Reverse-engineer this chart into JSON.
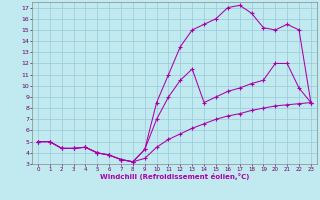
{
  "xlabel": "Windchill (Refroidissement éolien,°C)",
  "bg_color": "#c0eaf0",
  "grid_color": "#98c8d8",
  "line_color": "#aa00aa",
  "xlim": [
    -0.5,
    23.5
  ],
  "ylim": [
    3,
    17.5
  ],
  "yticks": [
    3,
    4,
    5,
    6,
    7,
    8,
    9,
    10,
    11,
    12,
    13,
    14,
    15,
    16,
    17
  ],
  "xticks": [
    0,
    1,
    2,
    3,
    4,
    5,
    6,
    7,
    8,
    9,
    10,
    11,
    12,
    13,
    14,
    15,
    16,
    17,
    18,
    19,
    20,
    21,
    22,
    23
  ],
  "line1_x": [
    0,
    1,
    2,
    3,
    4,
    5,
    6,
    7,
    8,
    9,
    10,
    11,
    12,
    13,
    14,
    15,
    16,
    17,
    18,
    19,
    20,
    21,
    22,
    23
  ],
  "line1_y": [
    5.0,
    5.0,
    4.4,
    4.4,
    4.5,
    4.0,
    3.8,
    3.4,
    3.2,
    3.5,
    4.5,
    5.2,
    5.7,
    6.2,
    6.6,
    7.0,
    7.3,
    7.5,
    7.8,
    8.0,
    8.2,
    8.3,
    8.4,
    8.5
  ],
  "line2_x": [
    0,
    1,
    2,
    3,
    4,
    5,
    6,
    7,
    8,
    9,
    10,
    11,
    12,
    13,
    14,
    15,
    16,
    17,
    18,
    19,
    20,
    21,
    22,
    23
  ],
  "line2_y": [
    5.0,
    5.0,
    4.4,
    4.4,
    4.5,
    4.0,
    3.8,
    3.4,
    3.2,
    4.3,
    7.0,
    9.0,
    10.5,
    11.5,
    8.5,
    9.0,
    9.5,
    9.8,
    10.2,
    10.5,
    12.0,
    12.0,
    9.8,
    8.5
  ],
  "line3_x": [
    0,
    1,
    2,
    3,
    4,
    5,
    6,
    7,
    8,
    9,
    10,
    11,
    12,
    13,
    14,
    15,
    16,
    17,
    18,
    19,
    20,
    21,
    22,
    23
  ],
  "line3_y": [
    5.0,
    5.0,
    4.4,
    4.4,
    4.5,
    4.0,
    3.8,
    3.4,
    3.2,
    4.3,
    8.5,
    11.0,
    13.5,
    15.0,
    15.5,
    16.0,
    17.0,
    17.2,
    16.5,
    15.2,
    15.0,
    15.5,
    15.0,
    8.5
  ]
}
